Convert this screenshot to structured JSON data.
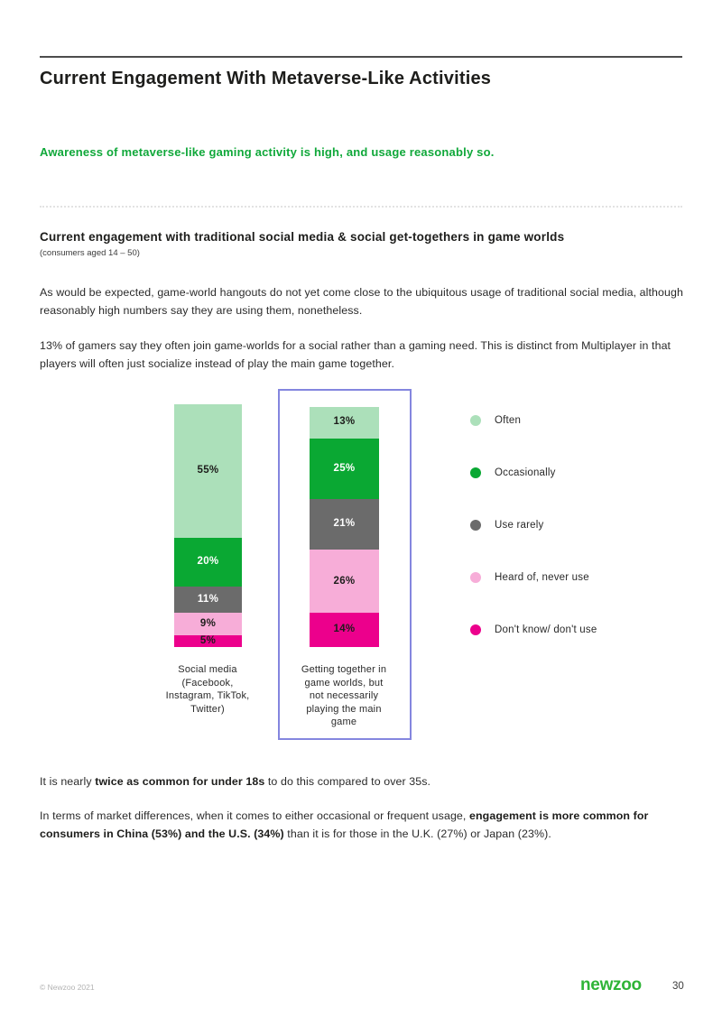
{
  "page": {
    "title": "Current Engagement With Metaverse-Like Activities",
    "subtitle": "Awareness of metaverse-like gaming activity is high, and usage reasonably so.",
    "section_heading": "Current engagement with traditional social media & social get-togethers in game worlds",
    "section_caption": "(consumers aged 14 – 50)",
    "para1": "As would be expected, game-world hangouts do not yet come close to the ubiquitous usage of traditional social media, although reasonably high numbers say they are using them, nonetheless.",
    "para2": "13% of gamers say they often join game-worlds for a social rather than a gaming need. This is distinct from Multiplayer in that players will often just socialize instead of play the main game together."
  },
  "insights": {
    "under18": {
      "pre": "It is nearly ",
      "bold": "twice as common for under 18s",
      "post": " to do this compared to over 35s."
    },
    "markets": {
      "pre": "In terms of market differences, when it comes to either occasional or frequent usage, ",
      "bold": "engagement is more common for consumers in China (53%) and the U.S. (34%)",
      "post": " than it is for those in the U.K. (27%) or Japan (23%)."
    }
  },
  "chart_data": {
    "type": "bar",
    "subtype": "stacked-vertical",
    "unit": "%",
    "categories": [
      "Social media (Facebook, Instagram, TikTok, Twitter)",
      "Getting together in game worlds, but not necessarily playing the main game"
    ],
    "category_lines": [
      [
        "Social media",
        "(Facebook,",
        "Instagram, TikTok,",
        "Twitter)"
      ],
      [
        "Getting together in",
        "game worlds, but",
        "not necessarily",
        "playing the main",
        "game"
      ]
    ],
    "series": [
      {
        "name": "Often",
        "color": "#ACE0BA",
        "text_color": "#1d1d1b",
        "values": [
          55,
          13
        ]
      },
      {
        "name": "Occasionally",
        "color": "#0AA833",
        "text_color": "#ffffff",
        "values": [
          20,
          25
        ]
      },
      {
        "name": "Use rarely",
        "color": "#6B6B6B",
        "text_color": "#ffffff",
        "values": [
          11,
          21
        ]
      },
      {
        "name": "Heard of, never use",
        "color": "#F7ADD8",
        "text_color": "#1d1d1b",
        "values": [
          9,
          26
        ]
      },
      {
        "name": "Don't know/ don't use",
        "color": "#EC008C",
        "text_color": "#1d1d1b",
        "values": [
          5,
          14
        ]
      }
    ],
    "legend_position": "right",
    "highlighted_category_index": 1,
    "highlight_box_color": "#8486DF",
    "ylim": [
      0,
      100
    ],
    "grid": false
  },
  "footer": {
    "copyright": "© Newzoo 2021",
    "logo_text": "newzoo",
    "logo_color": "#2FB437",
    "page_number": "30"
  }
}
